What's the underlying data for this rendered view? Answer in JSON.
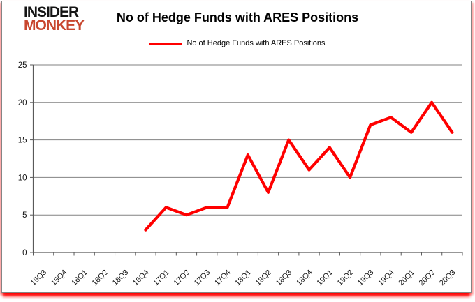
{
  "brand": {
    "line1": "INSIDER",
    "line2": "MONKEY"
  },
  "header": {
    "title": "No of Hedge Funds with ARES Positions"
  },
  "legend": {
    "label": "No of Hedge Funds with ARES Positions",
    "color": "#ff0000"
  },
  "colors": {
    "line": "#ff0000",
    "grid": "#828282",
    "axis": "#595959",
    "label": "#141414",
    "brand_black": "#141414",
    "brand_red": "#c8472f",
    "glow": "#ff0000"
  },
  "chart_data": {
    "type": "line",
    "title": "No of Hedge Funds with ARES Positions",
    "categories": [
      "15Q3",
      "15Q4",
      "16Q1",
      "16Q2",
      "16Q3",
      "16Q4",
      "17Q1",
      "17Q2",
      "17Q3",
      "17Q4",
      "18Q1",
      "18Q2",
      "18Q3",
      "18Q4",
      "19Q1",
      "19Q2",
      "19Q3",
      "19Q4",
      "20Q1",
      "20Q2",
      "20Q3"
    ],
    "series": [
      {
        "name": "No of Hedge Funds with ARES Positions",
        "color": "#ff0000",
        "values": [
          null,
          null,
          null,
          null,
          null,
          3,
          6,
          5,
          6,
          6,
          13,
          8,
          15,
          11,
          14,
          10,
          17,
          18,
          16,
          20,
          16
        ]
      }
    ],
    "ylim": [
      0,
      25
    ],
    "yticks": [
      0,
      5,
      10,
      15,
      20,
      25
    ],
    "grid": true,
    "legend_position": "top-center"
  }
}
